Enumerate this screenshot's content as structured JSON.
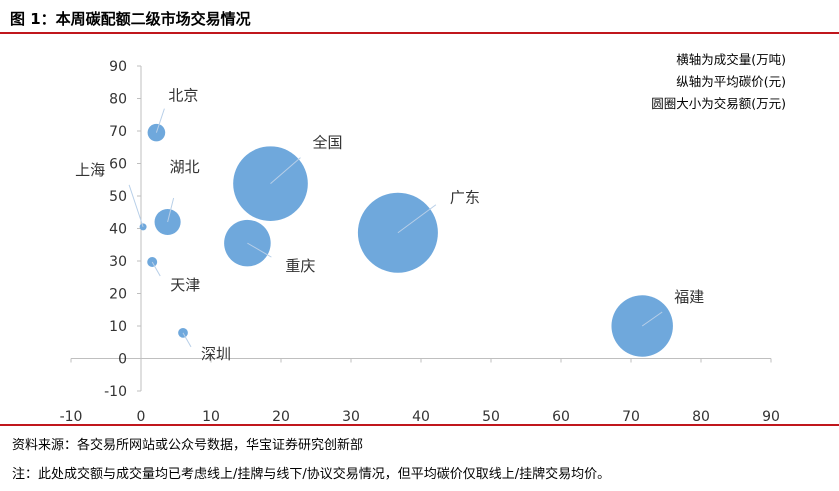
{
  "figure": {
    "title": "图 1：本周碳配额二级市场交易情况",
    "source": "资料来源：各交易所网站或公众号数据，华宝证券研究创新部",
    "note": "注：此处成交额与成交量均已考虑线上/挂牌与线下/协议交易情况，但平均碳价仅取线上/挂牌交易均价。"
  },
  "colors": {
    "bubble": "#6fa8dc",
    "accent_rule": "#c0161c",
    "axis": "#bfbfbf",
    "text": "#333333"
  },
  "chart_data": {
    "type": "bubble",
    "annotations": [
      "横轴为成交量(万吨)",
      "纵轴为平均碳价(元)",
      "圆圈大小为交易额(万元)"
    ],
    "xlim": [
      -10,
      90
    ],
    "ylim": [
      -10,
      90
    ],
    "x_ticks": [
      -10,
      0,
      10,
      20,
      30,
      40,
      50,
      60,
      70,
      80,
      90
    ],
    "y_ticks": [
      -10,
      0,
      10,
      20,
      30,
      40,
      50,
      60,
      70,
      80,
      90
    ],
    "grid": false,
    "points": [
      {
        "label": "北京",
        "x": 2.2,
        "y": 69.5,
        "size": 150
      },
      {
        "label": "上海",
        "x": 0.3,
        "y": 40.5,
        "size": 12
      },
      {
        "label": "湖北",
        "x": 3.8,
        "y": 42.0,
        "size": 330
      },
      {
        "label": "天津",
        "x": 1.6,
        "y": 29.7,
        "size": 48
      },
      {
        "label": "深圳",
        "x": 6.0,
        "y": 7.9,
        "size": 46
      },
      {
        "label": "全国",
        "x": 18.5,
        "y": 53.8,
        "size": 2700
      },
      {
        "label": "重庆",
        "x": 15.2,
        "y": 35.5,
        "size": 1050
      },
      {
        "label": "广东",
        "x": 36.7,
        "y": 38.7,
        "size": 3100
      },
      {
        "label": "福建",
        "x": 71.6,
        "y": 10.0,
        "size": 1830
      }
    ]
  }
}
